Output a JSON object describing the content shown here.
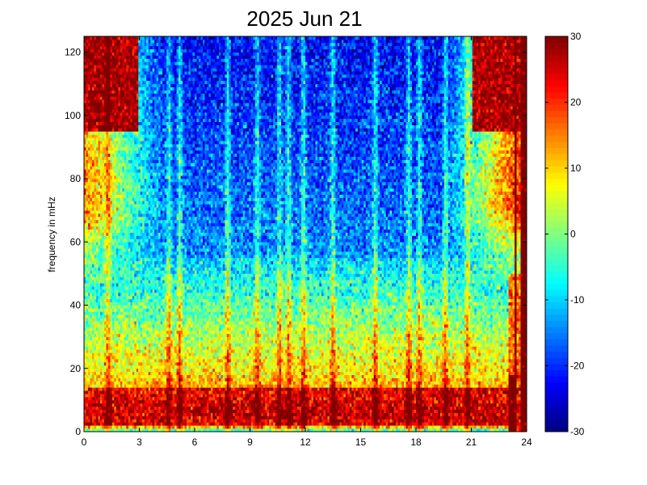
{
  "chart_data": {
    "type": "heatmap",
    "title": "2025 Jun 21",
    "xlabel": "",
    "ylabel": "frequency in mHz",
    "xlim": [
      0,
      24
    ],
    "ylim": [
      0,
      125
    ],
    "x_ticks": [
      "0",
      "3",
      "6",
      "9",
      "12",
      "15",
      "18",
      "21",
      "24"
    ],
    "y_ticks": [
      "0",
      "20",
      "40",
      "60",
      "80",
      "100",
      "120"
    ],
    "colorbar": {
      "colormap": "jet",
      "clim": [
        -30,
        30
      ],
      "ticks": [
        "-30",
        "-20",
        "-10",
        "0",
        "10",
        "20",
        "30"
      ]
    },
    "grid": false,
    "features": {
      "low_freq_band_mhz": [
        2,
        14
      ],
      "low_freq_band_level": 26,
      "mid_band_top_mhz": 55,
      "high_freq_level": 30,
      "quiet_interval_hours": [
        4.5,
        19.5
      ],
      "vertical_streak_hours": [
        1.3,
        4.6,
        5.2,
        7.8,
        9.4,
        10.6,
        11.1,
        11.9,
        13.5,
        15.8,
        17.6,
        18.2,
        19.6,
        20.8
      ],
      "saturated_event_hours": [
        23.0,
        24.0
      ]
    }
  }
}
